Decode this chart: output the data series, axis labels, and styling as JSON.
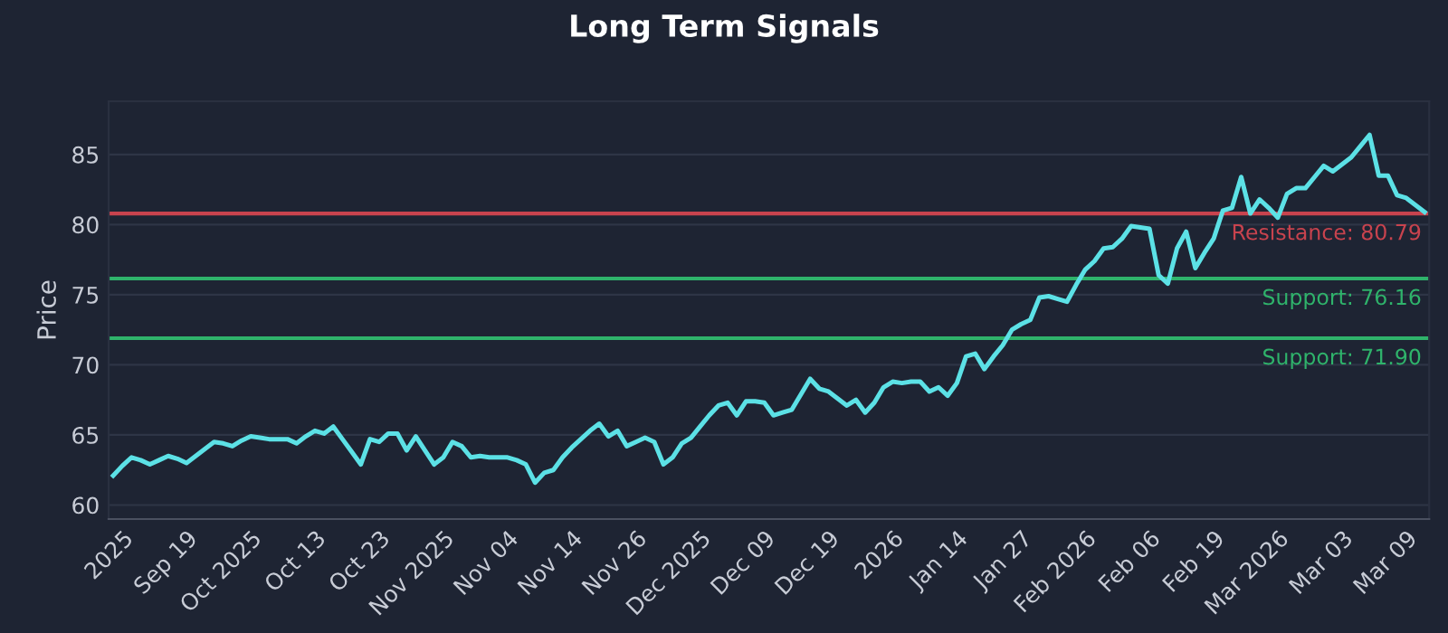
{
  "chart_data": {
    "type": "line",
    "title": "Long Term Signals",
    "ylabel": "Price",
    "categories": [
      null,
      "2025",
      null,
      null,
      null,
      null,
      null,
      null,
      "Sep 19",
      null,
      null,
      null,
      null,
      null,
      null,
      "Oct 2025",
      null,
      null,
      null,
      null,
      null,
      null,
      "Oct 13",
      null,
      null,
      null,
      null,
      null,
      null,
      "Oct 23",
      null,
      null,
      null,
      null,
      null,
      null,
      "Nov 2025",
      null,
      null,
      null,
      null,
      null,
      null,
      "Nov 04",
      null,
      null,
      null,
      null,
      null,
      null,
      "Nov 14",
      null,
      null,
      null,
      null,
      null,
      null,
      "Nov 26",
      null,
      null,
      null,
      null,
      null,
      null,
      "Dec 2025",
      null,
      null,
      null,
      null,
      null,
      null,
      "Dec 09",
      null,
      null,
      null,
      null,
      null,
      null,
      "Dec 19",
      null,
      null,
      null,
      null,
      null,
      null,
      "2026",
      null,
      null,
      null,
      null,
      null,
      null,
      "Jan 14",
      null,
      null,
      null,
      null,
      null,
      null,
      "Jan 27",
      null,
      null,
      null,
      null,
      null,
      null,
      "Feb 2026",
      null,
      null,
      null,
      null,
      null,
      null,
      "Feb 06",
      null,
      null,
      null,
      null,
      null,
      null,
      "Feb 19",
      null,
      null,
      null,
      null,
      null,
      null,
      "Mar 2026",
      null,
      null,
      null,
      null,
      null,
      null,
      "Mar 03",
      null,
      null,
      null,
      null,
      null,
      null,
      "Mar 09",
      null,
      null
    ],
    "series": [
      {
        "color": "#5ce1e6",
        "values": [
          62.1,
          62.8,
          63.4,
          63.2,
          62.9,
          63.2,
          63.5,
          63.3,
          63.0,
          63.5,
          64.0,
          64.5,
          64.4,
          64.2,
          64.6,
          64.9,
          64.8,
          64.7,
          64.7,
          64.7,
          64.4,
          64.9,
          65.3,
          65.1,
          65.6,
          64.7,
          63.8,
          62.9,
          64.7,
          64.5,
          65.1,
          65.1,
          63.9,
          64.9,
          63.9,
          62.9,
          63.4,
          64.5,
          64.2,
          63.4,
          63.5,
          63.4,
          63.4,
          63.4,
          63.2,
          62.9,
          61.6,
          62.3,
          62.5,
          63.4,
          64.1,
          64.7,
          65.3,
          65.8,
          64.9,
          65.3,
          64.2,
          64.5,
          64.8,
          64.5,
          62.9,
          63.4,
          64.4,
          64.8,
          65.6,
          66.4,
          67.1,
          67.3,
          66.4,
          67.4,
          67.4,
          67.3,
          66.4,
          66.6,
          66.8,
          67.9,
          69.0,
          68.3,
          68.1,
          67.6,
          67.1,
          67.5,
          66.6,
          67.3,
          68.4,
          68.8,
          68.7,
          68.8,
          68.8,
          68.1,
          68.4,
          67.8,
          68.7,
          70.6,
          70.8,
          69.7,
          70.6,
          71.4,
          72.5,
          72.9,
          73.2,
          74.8,
          74.9,
          74.7,
          74.5,
          75.7,
          76.8,
          77.4,
          78.3,
          78.4,
          79.0,
          79.9,
          79.8,
          79.7,
          76.4,
          75.8,
          78.3,
          79.5,
          76.9,
          78.0,
          79.0,
          81.0,
          81.2,
          83.4,
          80.8,
          81.8,
          81.2,
          80.5,
          82.2,
          82.6,
          82.6,
          83.4,
          84.2,
          83.8,
          84.3,
          84.8,
          85.6,
          86.4,
          83.5,
          83.5,
          82.1,
          81.9,
          81.4,
          80.9
        ]
      }
    ],
    "ylim": [
      59,
      88.8
    ],
    "yticks": [
      60,
      65,
      70,
      75,
      80,
      85
    ],
    "grid": "y",
    "ref_lines": [
      {
        "axis": "y",
        "value": 80.79,
        "label": "Resistance: 80.79",
        "color": "#c8434e"
      },
      {
        "axis": "y",
        "value": 76.16,
        "label": "Support: 76.16",
        "color": "#2fb36b"
      },
      {
        "axis": "y",
        "value": 71.9,
        "label": "Support: 71.90",
        "color": "#2fb36b"
      }
    ]
  }
}
